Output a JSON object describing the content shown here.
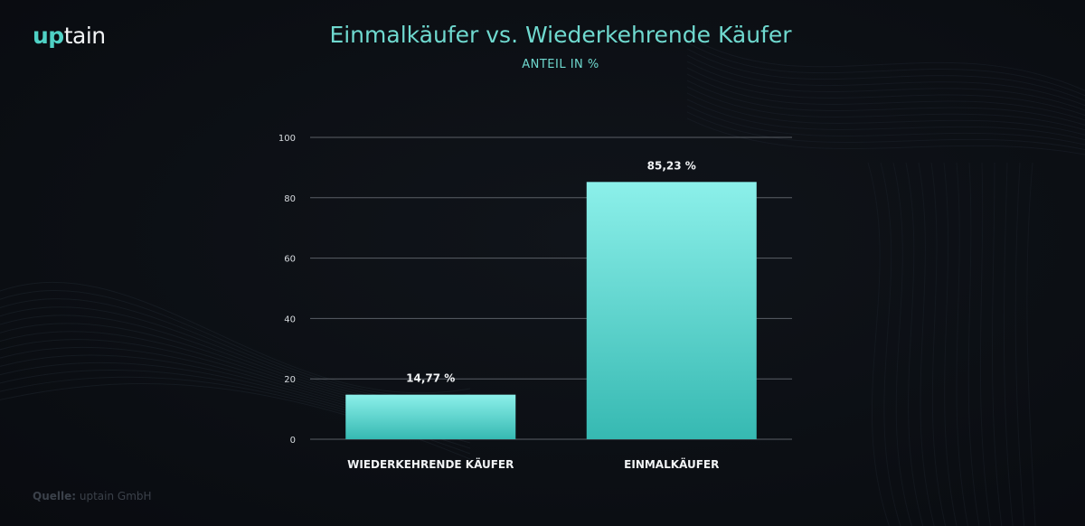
{
  "logo": {
    "part1": "up",
    "part2": "tain"
  },
  "header": {
    "title": "Einmalkäufer vs. Wiederkehrende Käufer",
    "subtitle": "ANTEIL IN %"
  },
  "source": {
    "label": "Quelle:",
    "text": "uptain GmbH"
  },
  "colors": {
    "accent": "#4fd1c5",
    "title": "#6fd9cf",
    "bar_top": "#8cf0ea",
    "bar_bottom": "#36b9b2",
    "grid": "#5a5f66",
    "background": "#0c0f14"
  },
  "chart_data": {
    "type": "bar",
    "title": "Einmalkäufer vs. Wiederkehrende Käufer",
    "subtitle": "ANTEIL IN %",
    "xlabel": "",
    "ylabel": "",
    "ylim": [
      0,
      100
    ],
    "yticks": [
      0,
      20,
      40,
      60,
      80,
      100
    ],
    "categories": [
      "WIEDERKEHRENDE KÄUFER",
      "EINMALKÄUFER"
    ],
    "values": [
      14.77,
      85.23
    ],
    "value_labels": [
      "14,77 %",
      "85,23 %"
    ],
    "grid": true,
    "legend": "none"
  }
}
